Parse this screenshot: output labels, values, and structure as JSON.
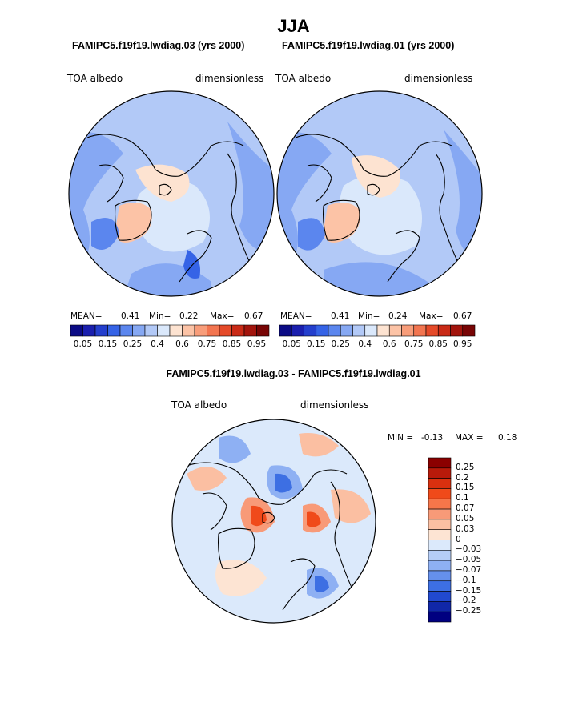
{
  "page_title": "JJA",
  "panels": [
    {
      "title": "FAMIPC5.f19f19.lwdiag.03 (yrs 2000)",
      "left_label": "TOA albedo",
      "right_label": "dimensionless",
      "stats": {
        "mean_label": "MEAN=",
        "mean": "0.41",
        "min_label": "Min=",
        "min": "0.22",
        "max_label": "Max=",
        "max": "0.67"
      }
    },
    {
      "title": "FAMIPC5.f19f19.lwdiag.01 (yrs 2000)",
      "left_label": "TOA albedo",
      "right_label": "dimensionless",
      "stats": {
        "mean_label": "MEAN=",
        "mean": "0.41",
        "min_label": "Min=",
        "min": "0.24",
        "max_label": "Max=",
        "max": "0.67"
      }
    }
  ],
  "diff_panel": {
    "title": "FAMIPC5.f19f19.lwdiag.03 - FAMIPC5.f19f19.lwdiag.01",
    "left_label": "TOA albedo",
    "right_label": "dimensionless",
    "minmax": {
      "min_label": "MIN =",
      "min": "-0.13",
      "max_label": "MAX =",
      "max": "0.18"
    }
  },
  "chart_data": [
    {
      "type": "heatmap",
      "projection": "north polar stereographic",
      "field": "TOA albedo",
      "units": "dimensionless",
      "case": "FAMIPC5.f19f19.lwdiag.03",
      "mean": 0.41,
      "min": 0.22,
      "max": 0.67,
      "levels": [
        0.05,
        0.15,
        0.25,
        0.4,
        0.6,
        0.75,
        0.85,
        0.95
      ],
      "colors": [
        "#0b0b85",
        "#1a1fae",
        "#243fcd",
        "#3563e6",
        "#5b86ee",
        "#86a8f3",
        "#b2c9f7",
        "#dae8fb",
        "#fde3d1",
        "#fcc3a6",
        "#f89d7a",
        "#f27550",
        "#e54a29",
        "#c92a16",
        "#a2140c",
        "#780505"
      ]
    },
    {
      "type": "heatmap",
      "projection": "north polar stereographic",
      "field": "TOA albedo",
      "units": "dimensionless",
      "case": "FAMIPC5.f19f19.lwdiag.01",
      "mean": 0.41,
      "min": 0.24,
      "max": 0.67,
      "levels": [
        0.05,
        0.15,
        0.25,
        0.4,
        0.6,
        0.75,
        0.85,
        0.95
      ],
      "colors": [
        "#0b0b85",
        "#1a1fae",
        "#243fcd",
        "#3563e6",
        "#5b86ee",
        "#86a8f3",
        "#b2c9f7",
        "#dae8fb",
        "#fde3d1",
        "#fcc3a6",
        "#f89d7a",
        "#f27550",
        "#e54a29",
        "#c92a16",
        "#a2140c",
        "#780505"
      ]
    },
    {
      "type": "heatmap",
      "projection": "north polar stereographic",
      "field": "TOA albedo difference",
      "units": "dimensionless",
      "min": -0.13,
      "max": 0.18,
      "levels": [
        "0.25",
        "0.2",
        "0.15",
        "0.1",
        "0.07",
        "0.05",
        "0.03",
        "0",
        "−0.03",
        "−0.05",
        "−0.07",
        "−0.1",
        "−0.15",
        "−0.2",
        "−0.25"
      ],
      "colors": [
        "#8b0000",
        "#b81a0a",
        "#d9300f",
        "#f04a1a",
        "#f6764a",
        "#f89a78",
        "#fbbfa2",
        "#fde4d3",
        "#dbe9fb",
        "#b5cdf7",
        "#8eb0f3",
        "#6590ec",
        "#3d6fe3",
        "#2149cf",
        "#1027a8",
        "#000080"
      ]
    }
  ]
}
